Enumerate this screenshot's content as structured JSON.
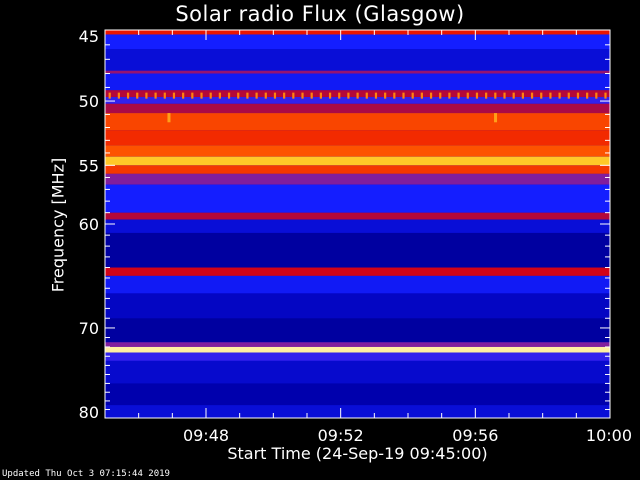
{
  "title": "Solar radio Flux (Glasgow)",
  "xlabel": "Start Time (24-Sep-19 09:45:00)",
  "ylabel": "Frequency [MHz]",
  "footer": "Updated Thu Oct  3 07:15:44 2019",
  "chart_data": {
    "type": "heatmap",
    "title": "Solar radio Flux (Glasgow)",
    "xlabel": "Start Time (24-Sep-19 09:45:00)",
    "ylabel": "Frequency [MHz]",
    "x_ticks": [
      "09:48",
      "09:52",
      "09:56",
      "10:00"
    ],
    "x_tick_minutes": [
      3,
      7,
      11,
      15
    ],
    "xlim_minutes": [
      0,
      15
    ],
    "y_ticks": [
      45,
      50,
      55,
      60,
      70,
      80
    ],
    "ylim": [
      45,
      80
    ],
    "y_scale": "log",
    "colormap": "rainbow",
    "bands": [
      {
        "f_from": 44.9,
        "f_to": 45.3,
        "level": 0.75
      },
      {
        "f_from": 45.3,
        "f_to": 46.3,
        "level": 0.3
      },
      {
        "f_from": 46.3,
        "f_to": 47.8,
        "level": 0.22
      },
      {
        "f_from": 47.8,
        "f_to": 48.0,
        "level": 0.55
      },
      {
        "f_from": 48.0,
        "f_to": 49.2,
        "level": 0.28
      },
      {
        "f_from": 49.2,
        "f_to": 49.7,
        "level": 0.62
      },
      {
        "f_from": 49.7,
        "f_to": 50.2,
        "level": 0.35
      },
      {
        "f_from": 50.2,
        "f_to": 50.9,
        "level": 0.6
      },
      {
        "f_from": 50.9,
        "f_to": 52.2,
        "level": 0.82
      },
      {
        "f_from": 52.2,
        "f_to": 53.4,
        "level": 0.78
      },
      {
        "f_from": 53.4,
        "f_to": 54.3,
        "level": 0.84
      },
      {
        "f_from": 54.3,
        "f_to": 55.0,
        "level": 0.93
      },
      {
        "f_from": 55.0,
        "f_to": 55.7,
        "level": 0.8
      },
      {
        "f_from": 55.7,
        "f_to": 56.6,
        "level": 0.5
      },
      {
        "f_from": 56.6,
        "f_to": 59.0,
        "level": 0.3
      },
      {
        "f_from": 59.0,
        "f_to": 59.6,
        "level": 0.62
      },
      {
        "f_from": 59.6,
        "f_to": 60.8,
        "level": 0.22
      },
      {
        "f_from": 60.8,
        "f_to": 64.0,
        "level": 0.12
      },
      {
        "f_from": 64.0,
        "f_to": 64.8,
        "level": 0.68
      },
      {
        "f_from": 64.8,
        "f_to": 66.5,
        "level": 0.28
      },
      {
        "f_from": 66.5,
        "f_to": 69.0,
        "level": 0.18
      },
      {
        "f_from": 69.0,
        "f_to": 71.5,
        "level": 0.12
      },
      {
        "f_from": 71.5,
        "f_to": 72.0,
        "level": 0.5
      },
      {
        "f_from": 72.0,
        "f_to": 72.6,
        "level": 0.98
      },
      {
        "f_from": 72.6,
        "f_to": 73.5,
        "level": 0.35
      },
      {
        "f_from": 73.5,
        "f_to": 76.0,
        "level": 0.2
      },
      {
        "f_from": 76.0,
        "f_to": 78.5,
        "level": 0.14
      },
      {
        "f_from": 78.5,
        "f_to": 80.0,
        "level": 0.22
      }
    ],
    "comb_line": {
      "freq": 49.6,
      "level": 0.88,
      "count": 55
    },
    "spikes": [
      {
        "minute": 1.9,
        "f_from": 50.9,
        "f_to": 51.6,
        "level": 0.9
      },
      {
        "minute": 11.6,
        "f_from": 50.9,
        "f_to": 51.6,
        "level": 0.9
      }
    ]
  }
}
